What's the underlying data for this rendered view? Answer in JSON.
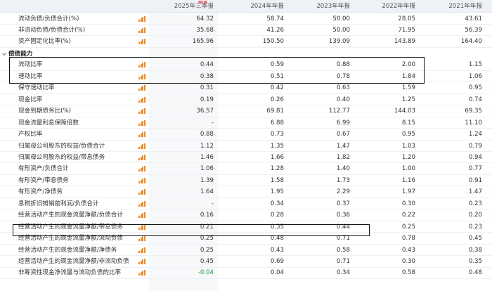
{
  "header": {
    "columns": [
      "2025年三季报",
      "2024年年报",
      "2023年年报",
      "2022年年报",
      "2021年年报"
    ],
    "new_badge": "NEW"
  },
  "rows_top": [
    {
      "label": "流动负债/负债合计(%)",
      "values": [
        "64.32",
        "58.74",
        "50.00",
        "28.05",
        "43.61"
      ]
    },
    {
      "label": "非流动负债/负债合计(%)",
      "values": [
        "35.68",
        "41.26",
        "50.00",
        "71.95",
        "56.39"
      ]
    },
    {
      "label": "资产固定化比率(%)",
      "values": [
        "165.96",
        "150.50",
        "139.09",
        "143.89",
        "164.40"
      ]
    }
  ],
  "section": {
    "label": "偿债能力"
  },
  "rows": [
    {
      "label": "流动比率",
      "values": [
        "0.44",
        "0.59",
        "0.88",
        "2.00",
        "1.15"
      ]
    },
    {
      "label": "速动比率",
      "values": [
        "0.38",
        "0.51",
        "0.78",
        "1.84",
        "1.06"
      ]
    },
    {
      "label": "保守速动比率",
      "values": [
        "0.31",
        "0.42",
        "0.63",
        "1.59",
        "0.95"
      ]
    },
    {
      "label": "现金比率",
      "values": [
        "0.19",
        "0.26",
        "0.40",
        "1.25",
        "0.74"
      ]
    },
    {
      "label": "现金到期债务比(%)",
      "values": [
        "36.57",
        "69.81",
        "112.77",
        "144.03",
        "69.35"
      ]
    },
    {
      "label": "现金流量利息保障倍数",
      "values": [
        "-",
        "6.88",
        "6.99",
        "8.15",
        "11.10"
      ]
    },
    {
      "label": "产权比率",
      "values": [
        "0.88",
        "0.73",
        "0.67",
        "0.95",
        "1.24"
      ]
    },
    {
      "label": "归属母公司股东的权益/负债合计",
      "values": [
        "1.12",
        "1.35",
        "1.47",
        "1.03",
        "0.79"
      ]
    },
    {
      "label": "归属母公司股东的权益/带息债务",
      "values": [
        "1.46",
        "1.66",
        "1.82",
        "1.20",
        "0.94"
      ]
    },
    {
      "label": "有形资产/负债合计",
      "values": [
        "1.06",
        "1.28",
        "1.40",
        "1.00",
        "0.77"
      ]
    },
    {
      "label": "有形资产/带息债务",
      "values": [
        "1.39",
        "1.58",
        "1.73",
        "1.16",
        "0.91"
      ]
    },
    {
      "label": "有形资产/净债务",
      "values": [
        "1.64",
        "1.95",
        "2.29",
        "1.97",
        "1.47"
      ]
    },
    {
      "label": "息税折旧摊销前利润/负债合计",
      "values": [
        "-",
        "0.34",
        "0.37",
        "0.30",
        "0.23"
      ]
    },
    {
      "label": "经营活动产生的现金流量净额/负债合计",
      "values": [
        "0.16",
        "0.28",
        "0.36",
        "0.22",
        "0.20"
      ]
    },
    {
      "label": "经营活动产生的现金流量净额/带息债务",
      "values": [
        "0.21",
        "0.35",
        "0.44",
        "0.25",
        "0.23"
      ]
    },
    {
      "label": "经营活动产生的现金流量净额/流动负债",
      "values": [
        "0.25",
        "0.48",
        "0.71",
        "0.78",
        "0.45"
      ]
    },
    {
      "label": "经营活动产生的现金流量净额/净债务",
      "values": [
        "0.25",
        "0.43",
        "0.58",
        "0.43",
        "0.38"
      ]
    },
    {
      "label": "经营活动产生的现金流量净额/非流动负债",
      "values": [
        "0.45",
        "0.69",
        "0.71",
        "0.30",
        "0.35"
      ]
    },
    {
      "label": "非筹资性现金净流量与流动负债的比率",
      "values": [
        "-0.04",
        "0.04",
        "0.34",
        "0.58",
        "0.48"
      ]
    }
  ],
  "colors": {
    "header_bg": "#eef1f5",
    "icon": "#f08a24",
    "negative": "#1a9a3c",
    "badge": "#e4393c"
  }
}
